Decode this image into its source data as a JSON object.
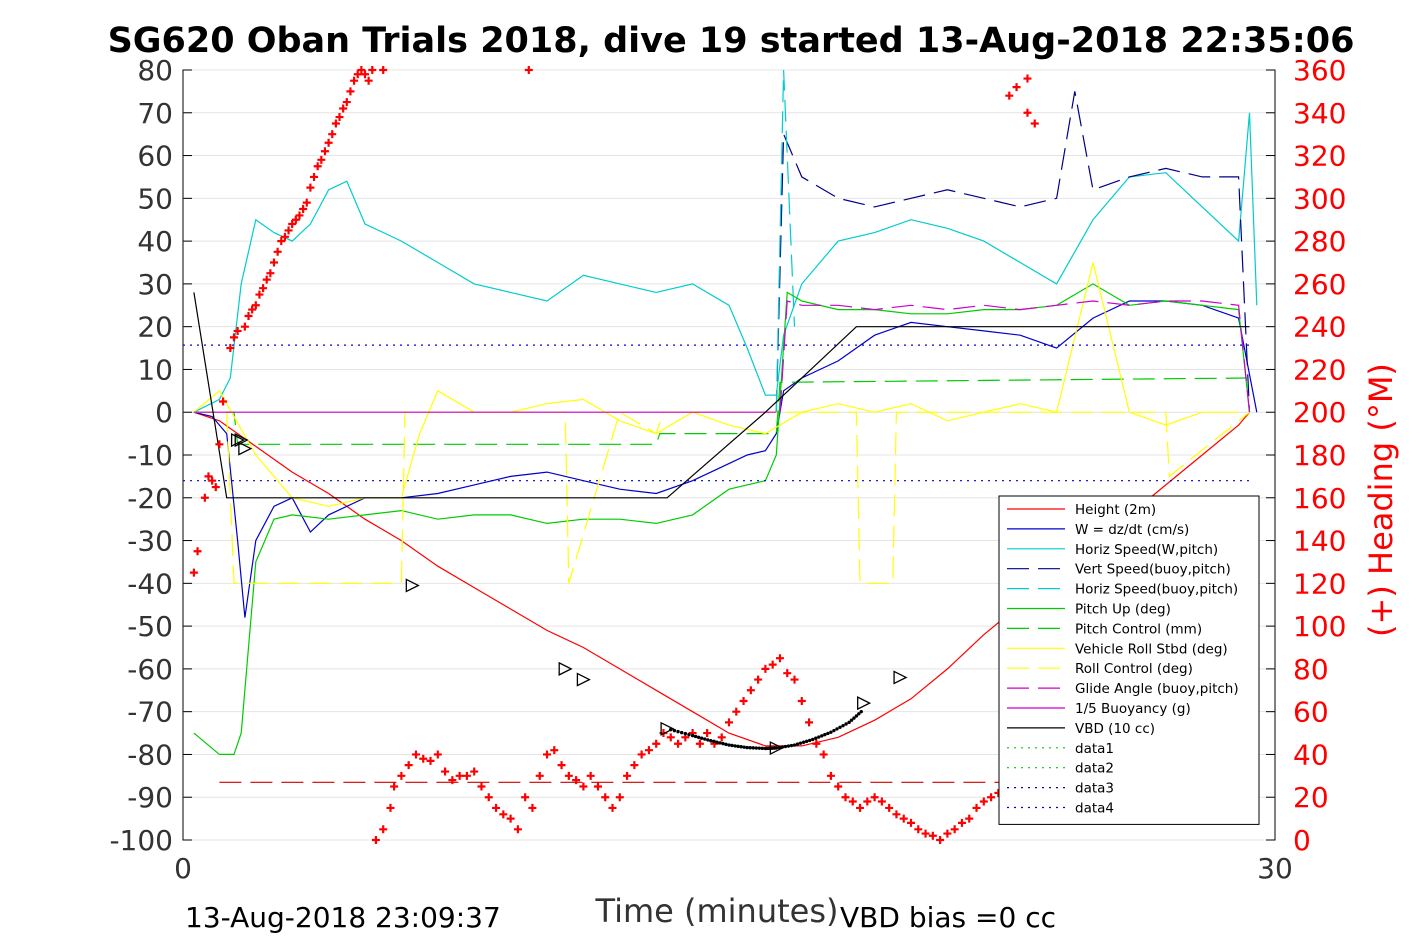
{
  "chart_data": {
    "type": "line",
    "title": "SG620 Oban Trials 2018, dive 19 started 13-Aug-2018 22:35:06",
    "xlabel": "Time (minutes)",
    "ylabel_right": "(+) Heading (°M)",
    "xlim": [
      0,
      30
    ],
    "ylim": [
      -100,
      80
    ],
    "ylim_right": [
      0,
      360
    ],
    "x_ticks": [
      "0",
      "30"
    ],
    "y_ticks": [
      "80",
      "70",
      "60",
      "50",
      "40",
      "30",
      "20",
      "10",
      "0",
      "-10",
      "-20",
      "-30",
      "-40",
      "-50",
      "-60",
      "-70",
      "-80",
      "-90",
      "-100"
    ],
    "y_ticks_right": [
      "360",
      "340",
      "320",
      "300",
      "280",
      "260",
      "240",
      "220",
      "200",
      "180",
      "160",
      "140",
      "120",
      "100",
      "80",
      "60",
      "40",
      "20",
      "0"
    ],
    "grid": true,
    "legend_position": "lower-right",
    "footer_left": "13-Aug-2018 23:09:37",
    "footer_right": "VBD bias =0 cc",
    "series": [
      {
        "name": "Height (2m)",
        "color": "#ff0000",
        "style": "solid",
        "x": [
          0.3,
          1.0,
          1.5,
          2.0,
          2.5,
          3.0,
          4.0,
          5.0,
          6.0,
          7.0,
          8.0,
          9.0,
          10.0,
          11.0,
          12.0,
          13.0,
          14.0,
          15.0,
          16.0,
          17.0,
          18.0,
          19.0,
          20.0,
          21.0,
          22.0,
          23.0,
          24.0,
          25.0,
          26.0,
          27.0,
          28.0,
          29.0,
          29.3
        ],
        "y": [
          0,
          -2,
          -5,
          -8,
          -11,
          -14,
          -19,
          -25,
          -30,
          -36,
          -41,
          -46,
          -51,
          -55,
          -60,
          -65,
          -70,
          -75,
          -78,
          -78,
          -76,
          -72,
          -67,
          -60,
          -52,
          -45,
          -38,
          -32,
          -24,
          -17,
          -10,
          -3,
          0
        ]
      },
      {
        "name": "W = dz/dt (cm/s)",
        "color": "#0000cc",
        "style": "solid",
        "x": [
          0.3,
          0.8,
          1.2,
          1.5,
          1.7,
          2.0,
          2.5,
          3.0,
          3.5,
          4.0,
          5.0,
          6.0,
          7.0,
          8.0,
          9.0,
          10.0,
          11.0,
          12.0,
          13.0,
          14.0,
          15.0,
          15.5,
          16.0,
          16.3,
          16.5,
          17.0,
          18.0,
          19.0,
          20.0,
          21.0,
          22.0,
          23.0,
          24.0,
          25.0,
          26.0,
          27.0,
          28.0,
          29.0,
          29.5
        ],
        "y": [
          0,
          -1,
          -5,
          -30,
          -48,
          -30,
          -22,
          -20,
          -28,
          -24,
          -20,
          -20,
          -19,
          -17,
          -15,
          -14,
          -16,
          -18,
          -19,
          -16,
          -12,
          -10,
          -9,
          -5,
          5,
          8,
          12,
          18,
          21,
          20,
          19,
          18,
          15,
          22,
          26,
          26,
          25,
          22,
          0
        ]
      },
      {
        "name": "Horiz Speed(W,pitch)",
        "color": "#00cccc",
        "style": "solid",
        "x": [
          0.3,
          1.0,
          1.3,
          1.6,
          2.0,
          2.5,
          3.0,
          3.5,
          4.0,
          4.5,
          5.0,
          6.0,
          7.0,
          8.0,
          9.0,
          10.0,
          11.0,
          12.0,
          13.0,
          14.0,
          15.0,
          15.5,
          16.0,
          16.3,
          16.5,
          17.0,
          18.0,
          19.0,
          20.0,
          21.0,
          22.0,
          23.0,
          24.0,
          25.0,
          26.0,
          27.0,
          28.0,
          29.0,
          29.3,
          29.5
        ],
        "y": [
          0,
          3,
          8,
          30,
          45,
          42,
          40,
          44,
          52,
          54,
          44,
          40,
          35,
          30,
          28,
          26,
          32,
          30,
          28,
          30,
          25,
          15,
          4,
          4,
          18,
          30,
          40,
          42,
          45,
          43,
          40,
          35,
          30,
          45,
          55,
          56,
          48,
          40,
          70,
          25
        ]
      },
      {
        "name": "Vert Speed(buoy,pitch)",
        "color": "#00008b",
        "style": "dashed",
        "x": [
          16.3,
          16.5,
          17.0,
          18.0,
          19.0,
          20.0,
          21.0,
          22.0,
          23.0,
          24.0,
          24.5,
          25.0,
          26.0,
          27.0,
          28.0,
          29.0,
          29.3
        ],
        "y": [
          0,
          65,
          55,
          50,
          48,
          50,
          52,
          50,
          48,
          50,
          75,
          52,
          55,
          57,
          55,
          55,
          0
        ]
      },
      {
        "name": "Horiz Speed(buoy,pitch)",
        "color": "#00cccc",
        "style": "dashed",
        "x": [
          16.3,
          16.5,
          16.8
        ],
        "y": [
          0,
          80,
          20
        ]
      },
      {
        "name": "Pitch Up (deg)",
        "color": "#00cc00",
        "style": "solid",
        "x": [
          0.3,
          1.0,
          1.4,
          1.6,
          2.0,
          2.5,
          3.0,
          4.0,
          5.0,
          6.0,
          7.0,
          8.0,
          9.0,
          10.0,
          11.0,
          12.0,
          13.0,
          14.0,
          15.0,
          16.0,
          16.3,
          16.6,
          17.0,
          18.0,
          19.0,
          20.0,
          21.0,
          22.0,
          23.0,
          24.0,
          25.0,
          26.0,
          27.0,
          28.0,
          29.0,
          29.3
        ],
        "y": [
          -75,
          -80,
          -80,
          -75,
          -35,
          -25,
          -24,
          -25,
          -24,
          -23,
          -25,
          -24,
          -24,
          -26,
          -25,
          -25,
          -26,
          -24,
          -18,
          -16,
          -10,
          28,
          26,
          24,
          24,
          23,
          23,
          24,
          24,
          25,
          30,
          25,
          26,
          25,
          24,
          0
        ]
      },
      {
        "name": "Pitch Control (mm)",
        "color": "#00cc00",
        "style": "dashed",
        "x": [
          0.3,
          1.4,
          1.5,
          13.0,
          13.1,
          16.3,
          16.4,
          29.3
        ],
        "y": [
          0,
          0,
          -7.5,
          -7.5,
          -5,
          -5,
          7,
          8
        ]
      },
      {
        "name": "Vehicle Roll Stbd (deg)",
        "color": "#ffff00",
        "style": "solid",
        "x": [
          0.3,
          1.0,
          2.0,
          3.0,
          4.0,
          5.0,
          6.0,
          6.5,
          7.0,
          8.0,
          9.0,
          10.0,
          11.0,
          12.0,
          13.0,
          14.0,
          15.0,
          16.0,
          17.0,
          18.0,
          19.0,
          20.0,
          21.0,
          22.0,
          23.0,
          24.0,
          25.0,
          26.0,
          27.0,
          28.0,
          29.0
        ],
        "y": [
          0,
          5,
          -10,
          -20,
          -22,
          -20,
          -20,
          -5,
          5,
          0,
          0,
          2,
          3,
          -2,
          -5,
          0,
          -3,
          -5,
          0,
          2,
          0,
          2,
          -2,
          0,
          2,
          0,
          35,
          0,
          -3,
          0,
          0
        ]
      },
      {
        "name": "Roll Control (deg)",
        "color": "#ffff00",
        "style": "dashed",
        "x": [
          0.3,
          1.2,
          1.4,
          6.0,
          6.1,
          10.5,
          10.6,
          12.0,
          13.0,
          13.2,
          18.5,
          18.6,
          19.5,
          19.6,
          27.0,
          27.1,
          29.3
        ],
        "y": [
          0,
          0,
          -40,
          -40,
          0,
          0,
          -40,
          0,
          -5,
          0,
          0,
          -40,
          -40,
          0,
          0,
          -15,
          0
        ]
      },
      {
        "name": "Glide Angle (buoy,pitch)",
        "color": "#cc00cc",
        "style": "dashed",
        "x": [
          16.4,
          16.6,
          17.0,
          18.0,
          19.0,
          20.0,
          21.0,
          22.0,
          23.0,
          24.0,
          25.0,
          26.0,
          27.0,
          28.0,
          29.0,
          29.3
        ],
        "y": [
          0,
          26,
          25,
          25,
          24,
          25,
          24,
          25,
          24,
          25,
          26,
          25,
          26,
          26,
          25,
          0
        ]
      },
      {
        "name": "1/5 Buoyancy (g)",
        "color": "#cc00cc",
        "style": "solid",
        "x": [
          0.3,
          16.3
        ],
        "y": [
          0,
          0
        ]
      },
      {
        "name": "VBD (10 cc)",
        "color": "#000000",
        "style": "solid",
        "x": [
          0.3,
          1.2,
          13.3,
          16.0,
          18.5,
          29.3
        ],
        "y": [
          28,
          -20,
          -20,
          0,
          20,
          20
        ]
      },
      {
        "name": "data1",
        "color": "#00cc00",
        "style": "dotted",
        "x": [],
        "y": []
      },
      {
        "name": "data2",
        "color": "#00cc00",
        "style": "dotted",
        "x": [],
        "y": []
      },
      {
        "name": "data3",
        "color": "#0000cc",
        "style": "dotted",
        "x": [
          0,
          29.3
        ],
        "y": [
          15.7,
          15.7
        ]
      },
      {
        "name": "data4",
        "color": "#0000cc",
        "style": "dotted",
        "x": [
          0,
          29.3
        ],
        "y": [
          -16,
          -16
        ]
      }
    ],
    "extra_series": {
      "red_dashed_line": {
        "color": "#cc0000",
        "style": "dashed",
        "x": [
          1.0,
          29.3
        ],
        "y": [
          -86.5,
          -86.5
        ]
      },
      "heading_points": {
        "color": "#ff0000",
        "marker": "+",
        "axis": "right",
        "x": [
          0.3,
          0.4,
          0.6,
          0.7,
          0.8,
          0.9,
          1.0,
          1.1,
          1.3,
          1.4,
          1.5,
          1.7,
          1.8,
          1.9,
          2.0,
          2.1,
          2.2,
          2.3,
          2.4,
          2.5,
          2.6,
          2.7,
          2.8,
          2.9,
          3.0,
          3.1,
          3.2,
          3.3,
          3.4,
          3.5,
          3.6,
          3.7,
          3.8,
          3.9,
          4.0,
          4.1,
          4.2,
          4.3,
          4.4,
          4.5,
          4.6,
          4.7,
          4.8,
          4.9,
          5.0,
          5.1,
          5.2,
          5.3,
          5.4,
          5.5,
          9.5,
          5.3,
          5.5,
          5.7,
          5.8,
          6.0,
          6.2,
          6.4,
          6.6,
          6.8,
          7.0,
          7.2,
          7.4,
          7.6,
          7.8,
          8.0,
          8.2,
          8.4,
          8.6,
          8.8,
          9.0,
          9.2,
          9.4,
          9.6,
          9.8,
          10.0,
          10.2,
          10.4,
          10.6,
          10.8,
          11.0,
          11.2,
          11.4,
          11.6,
          11.8,
          12.0,
          12.2,
          12.4,
          12.6,
          12.8,
          13.0,
          13.2,
          13.4,
          13.6,
          13.8,
          14.0,
          14.2,
          14.4,
          14.6,
          14.8,
          15.0,
          15.2,
          15.4,
          15.6,
          15.8,
          16.0,
          16.2,
          16.4,
          16.6,
          16.8,
          17.0,
          17.2,
          17.4,
          17.6,
          17.8,
          18.0,
          18.2,
          18.4,
          18.6,
          18.8,
          19.0,
          19.2,
          19.4,
          19.6,
          19.8,
          20.0,
          20.2,
          20.4,
          20.6,
          20.8,
          21.0,
          21.2,
          21.4,
          21.6,
          21.8,
          22.0,
          22.2,
          22.4,
          22.6,
          22.8,
          23.0,
          23.2,
          23.4,
          22.7,
          22.9,
          23.2
        ],
        "y": [
          125,
          135,
          160,
          170,
          168,
          165,
          185,
          205,
          230,
          235,
          238,
          240,
          245,
          248,
          250,
          255,
          258,
          262,
          265,
          270,
          275,
          280,
          282,
          285,
          288,
          290,
          292,
          295,
          298,
          305,
          310,
          315,
          318,
          322,
          326,
          330,
          335,
          338,
          342,
          345,
          350,
          355,
          358,
          360,
          358,
          355,
          360,
          362,
          365,
          360,
          360,
          0,
          5,
          15,
          25,
          30,
          35,
          40,
          38,
          37,
          40,
          32,
          28,
          30,
          30,
          32,
          25,
          20,
          15,
          12,
          10,
          5,
          20,
          15,
          30,
          40,
          42,
          35,
          30,
          28,
          25,
          30,
          25,
          20,
          15,
          20,
          30,
          35,
          40,
          42,
          45,
          50,
          48,
          45,
          48,
          50,
          45,
          50,
          45,
          48,
          55,
          60,
          65,
          70,
          75,
          80,
          82,
          85,
          78,
          75,
          65,
          55,
          45,
          40,
          30,
          25,
          20,
          18,
          15,
          18,
          20,
          18,
          15,
          12,
          10,
          8,
          5,
          3,
          2,
          0,
          3,
          5,
          8,
          10,
          15,
          18,
          20,
          22,
          25,
          28,
          30,
          340,
          335,
          348,
          352,
          356
        ]
      },
      "vbd_markers": {
        "color": "#000000",
        "marker": "triangle",
        "x": [
          1.5,
          1.6,
          1.7,
          6.3,
          10.5,
          11.0,
          13.3,
          16.3,
          18.7,
          19.7
        ],
        "y": [
          -6.5,
          -6.5,
          -8.5,
          -40.5,
          -60,
          -62.5,
          -74,
          -78.5,
          -68,
          -62
        ]
      }
    }
  }
}
